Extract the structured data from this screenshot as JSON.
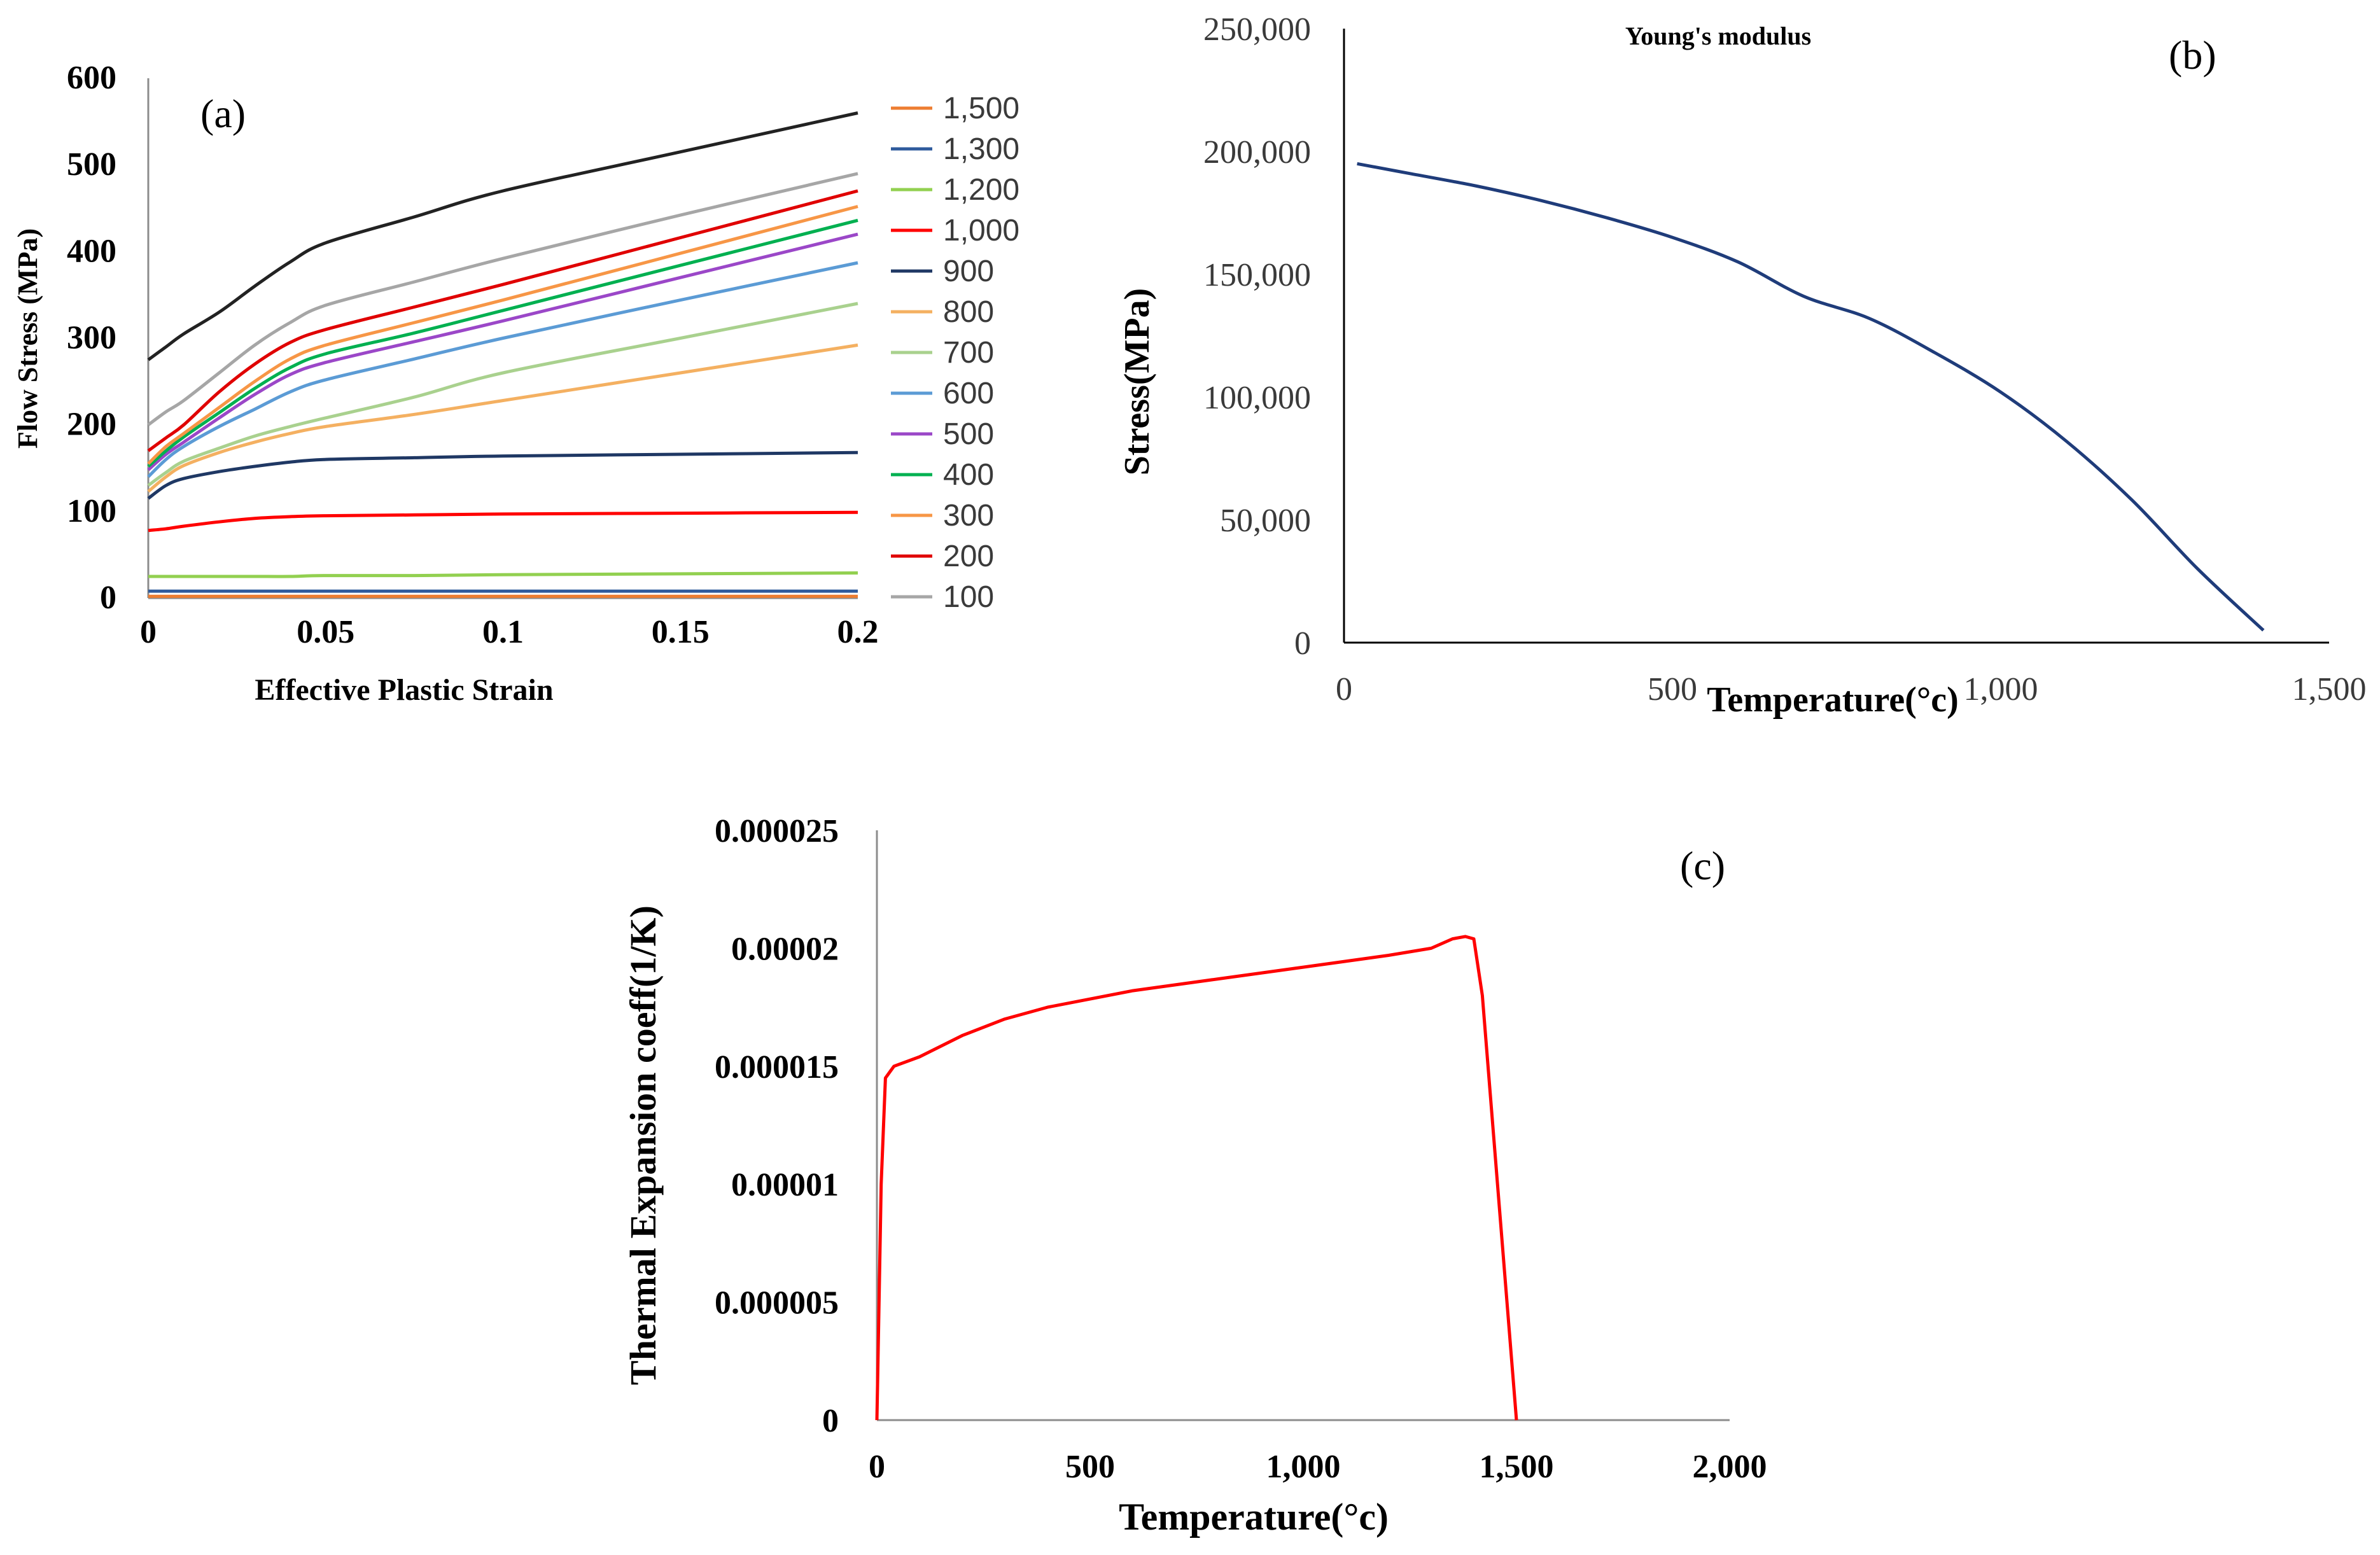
{
  "chart_data": [
    {
      "id": "a",
      "panel_label": "(a)",
      "type": "line",
      "title": "",
      "xlabel": "Effective Plastic Strain",
      "ylabel": "Flow Stress (MPa)",
      "xlim": [
        0,
        0.2
      ],
      "ylim": [
        0,
        600
      ],
      "xticks": [
        0,
        0.05,
        0.1,
        0.15,
        0.2
      ],
      "xtick_labels": [
        "0",
        "0.05",
        "0.1",
        "0.15",
        "0.2"
      ],
      "yticks": [
        0,
        100,
        200,
        300,
        400,
        500,
        600
      ],
      "ytick_labels": [
        "0",
        "100",
        "200",
        "300",
        "400",
        "500",
        "600"
      ],
      "grid": false,
      "legend_position": "right",
      "x": [
        0,
        0.005,
        0.01,
        0.02,
        0.03,
        0.04,
        0.05,
        0.075,
        0.1,
        0.15,
        0.2
      ],
      "series": [
        {
          "name": "1,500",
          "color": "#ed7d31",
          "values": [
            2,
            2,
            2,
            2,
            2,
            2,
            2,
            2,
            2,
            2,
            2
          ]
        },
        {
          "name": "1,300",
          "color": "#2e5a9c",
          "values": [
            8,
            8,
            8,
            8,
            8,
            8,
            8,
            8,
            8,
            8,
            8
          ]
        },
        {
          "name": "1,200",
          "color": "#92d050",
          "values": [
            25,
            25,
            25,
            25,
            25,
            25,
            26,
            26,
            27,
            28,
            29
          ]
        },
        {
          "name": "1,000",
          "color": "#ff0000",
          "values": [
            78,
            80,
            83,
            88,
            92,
            94,
            95,
            96,
            97,
            98,
            99
          ]
        },
        {
          "name": "900",
          "color": "#1f3864",
          "values": [
            115,
            130,
            138,
            146,
            152,
            157,
            160,
            162,
            164,
            166,
            168
          ]
        },
        {
          "name": "800",
          "color": "#f4b061",
          "values": [
            123,
            140,
            153,
            168,
            180,
            190,
            198,
            212,
            228,
            260,
            292
          ]
        },
        {
          "name": "700",
          "color": "#a9d18e",
          "values": [
            130,
            145,
            158,
            173,
            187,
            198,
            208,
            232,
            260,
            300,
            340
          ]
        },
        {
          "name": "600",
          "color": "#5b9bd5",
          "values": [
            140,
            160,
            175,
            198,
            218,
            238,
            252,
            276,
            300,
            344,
            387
          ]
        },
        {
          "name": "500",
          "color": "#9b47c8",
          "values": [
            148,
            166,
            180,
            208,
            235,
            258,
            272,
            296,
            320,
            370,
            420
          ]
        },
        {
          "name": "400",
          "color": "#00b050",
          "values": [
            152,
            170,
            186,
            214,
            242,
            266,
            282,
            306,
            332,
            384,
            436
          ]
        },
        {
          "name": "300",
          "color": "#f79646",
          "values": [
            155,
            175,
            190,
            220,
            250,
            276,
            292,
            318,
            344,
            398,
            452
          ]
        },
        {
          "name": "200",
          "color": "#e00000",
          "values": [
            170,
            185,
            200,
            238,
            270,
            295,
            310,
            336,
            362,
            416,
            470
          ]
        },
        {
          "name": "100",
          "color": "#a6a6a6",
          "values": [
            200,
            215,
            228,
            260,
            292,
            318,
            338,
            365,
            392,
            442,
            490
          ]
        },
        {
          "name": "",
          "color": "#222222",
          "values": [
            275,
            290,
            305,
            330,
            360,
            388,
            410,
            440,
            470,
            515,
            560
          ]
        }
      ]
    },
    {
      "id": "b",
      "panel_label": "(b)",
      "type": "line",
      "title": "Young's modulus",
      "xlabel": "Temperature(°c)",
      "ylabel": "Stress(MPa)",
      "xlim": [
        0,
        1500
      ],
      "ylim": [
        0,
        250000
      ],
      "xticks": [
        0,
        500,
        1000,
        1500
      ],
      "xtick_labels": [
        "0",
        "500",
        "1,000",
        "1,500"
      ],
      "yticks": [
        0,
        50000,
        100000,
        150000,
        200000,
        250000
      ],
      "ytick_labels": [
        "0",
        "50,000",
        "100,000",
        "150,000",
        "200,000",
        "250,000"
      ],
      "grid": false,
      "series": [
        {
          "name": "Young's modulus",
          "color": "#1f3c7a",
          "x": [
            20,
            100,
            200,
            300,
            400,
            500,
            600,
            700,
            800,
            900,
            1000,
            1100,
            1200,
            1300,
            1400
          ],
          "values": [
            195000,
            191000,
            186000,
            180000,
            173000,
            165000,
            155000,
            141000,
            132000,
            118000,
            102000,
            82000,
            58000,
            30000,
            5000
          ]
        }
      ]
    },
    {
      "id": "c",
      "panel_label": "(c)",
      "type": "line",
      "title": "",
      "xlabel": "Temperature(°c)",
      "ylabel": "Thermal Expansion coeff(1/K)",
      "xlim": [
        0,
        2000
      ],
      "ylim": [
        0,
        2.5e-05
      ],
      "xticks": [
        0,
        500,
        1000,
        1500,
        2000
      ],
      "xtick_labels": [
        "0",
        "500",
        "1,000",
        "1,500",
        "2,000"
      ],
      "yticks": [
        0,
        5e-06,
        1e-05,
        1.5e-05,
        2e-05,
        2.5e-05
      ],
      "ytick_labels": [
        "0",
        "0.000005",
        "0.00001",
        "0.000015",
        "0.00002",
        "0.000025"
      ],
      "grid": false,
      "series": [
        {
          "name": "Thermal Expansion coeff",
          "color": "#ff0000",
          "x": [
            0,
            10,
            20,
            40,
            100,
            200,
            300,
            400,
            600,
            800,
            1000,
            1200,
            1300,
            1350,
            1380,
            1400,
            1420,
            1500
          ],
          "values": [
            0,
            1e-05,
            1.45e-05,
            1.5e-05,
            1.54e-05,
            1.63e-05,
            1.7e-05,
            1.75e-05,
            1.82e-05,
            1.87e-05,
            1.92e-05,
            1.97e-05,
            2e-05,
            2.04e-05,
            2.05e-05,
            2.04e-05,
            1.8e-05,
            0
          ]
        }
      ]
    }
  ]
}
